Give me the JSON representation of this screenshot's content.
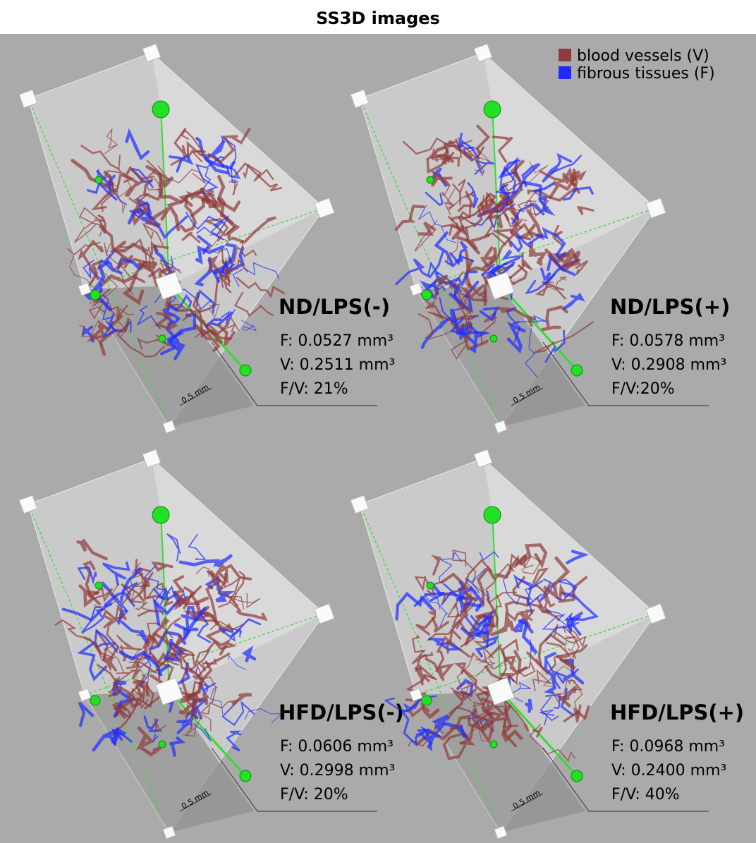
{
  "title": "SS3D images",
  "legend": [
    {
      "label": "blood vessels (V)",
      "color": "#8e3b3b"
    },
    {
      "label": "fibrous tissues (F)",
      "color": "#1e2cff"
    }
  ],
  "panels": [
    {
      "label": "ND/LPS(-)",
      "lines": [
        "F: 0.0527 mm³",
        "V: 0.2511 mm³",
        "F/V: 21%"
      ],
      "scale": "0.5 mm"
    },
    {
      "label": "ND/LPS(+)",
      "lines": [
        "F: 0.0578 mm³",
        "V: 0.2908 mm³",
        "F/V:20%"
      ],
      "scale": "0.5 mm"
    },
    {
      "label": "HFD/LPS(-)",
      "lines": [
        "F: 0.0606 mm³",
        "V: 0.2998 mm³",
        "F/V: 20%"
      ],
      "scale": "0.5 mm"
    },
    {
      "label": "HFD/LPS(+)",
      "lines": [
        "F: 0.0968 mm³",
        "V: 0.2400 mm³",
        "F/V: 40%"
      ],
      "scale": "0.5 mm"
    }
  ]
}
